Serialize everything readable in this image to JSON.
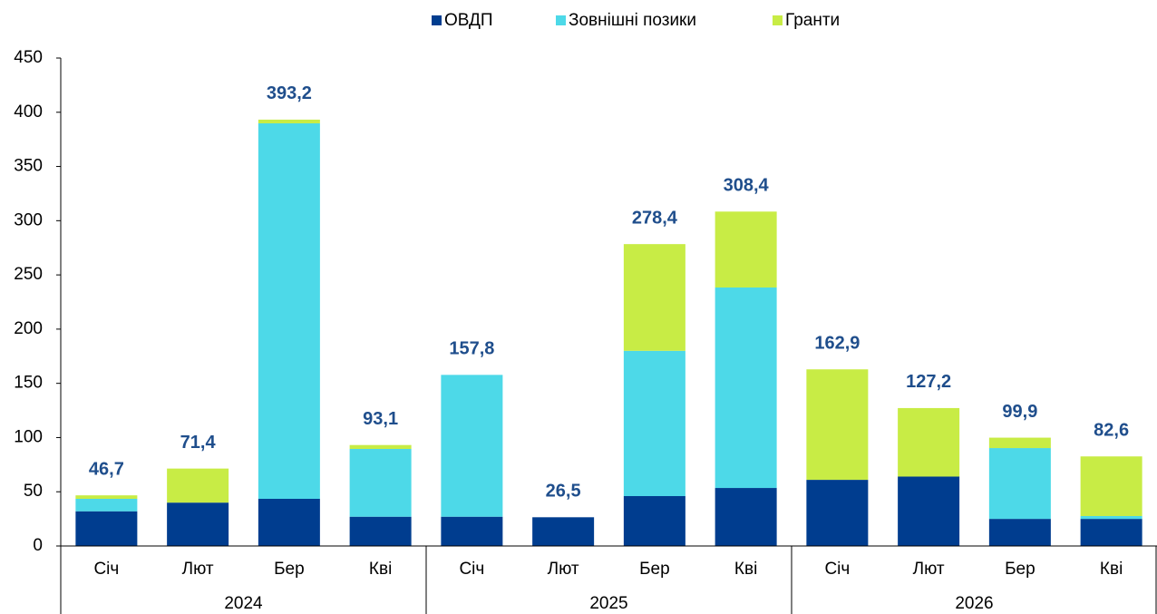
{
  "chart_data": {
    "type": "stacked_bar",
    "categories": [
      "Січ",
      "Лют",
      "Бер",
      "Кві",
      "Січ",
      "Лют",
      "Бер",
      "Кві",
      "Січ",
      "Лют",
      "Бер",
      "Кві"
    ],
    "groups": [
      "2024",
      "2025",
      "2026"
    ],
    "series": [
      {
        "name": "ОВДП",
        "color": "#003d8f",
        "values": [
          32,
          40,
          43.5,
          27,
          27,
          26.5,
          46,
          53.5,
          61,
          64,
          25,
          25
        ]
      },
      {
        "name": "Зовнішні позики",
        "color": "#4dd9e8",
        "values": [
          11.5,
          0,
          346.3,
          62.5,
          130.8,
          0,
          134,
          184.9,
          0,
          0,
          65.3,
          2.6
        ]
      },
      {
        "name": "Гранти",
        "color": "#c8ec45",
        "values": [
          3.2,
          31.4,
          3.4,
          3.6,
          0,
          0,
          98.4,
          70,
          101.9,
          63.2,
          9.6,
          55
        ]
      }
    ],
    "totals": {
      "values": [
        46.7,
        71.4,
        393.2,
        93.1,
        157.8,
        26.5,
        278.4,
        308.4,
        162.9,
        127.2,
        99.9,
        82.6
      ],
      "value_labels": [
        "46,7",
        "71,4",
        "393,2",
        "93,1",
        "157,8",
        "26,5",
        "278,4",
        "308,4",
        "162,9",
        "127,2",
        "99,9",
        "82,6"
      ]
    },
    "ylim": [
      0,
      450
    ],
    "yticks": [
      0,
      50,
      100,
      150,
      200,
      250,
      300,
      350,
      400,
      450
    ],
    "legend": "top"
  }
}
